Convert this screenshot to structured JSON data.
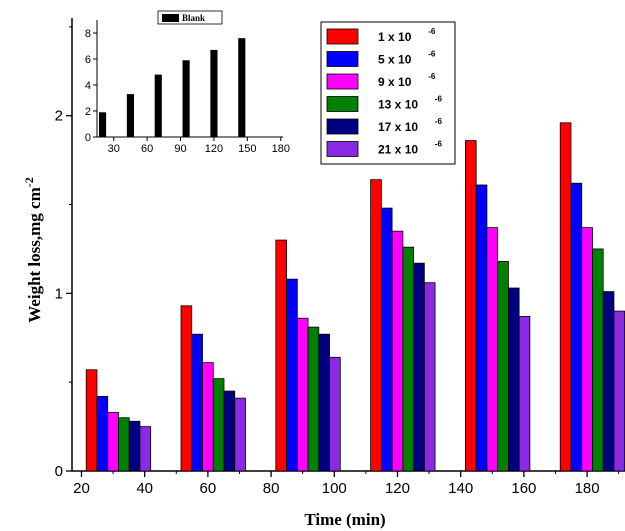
{
  "chart_data": [
    {
      "type": "bar",
      "title": "",
      "xlabel": "Time (min)",
      "ylabel": "Weight loss,mg cm",
      "ylabel_exponent": "-2",
      "xlim": [
        17,
        192
      ],
      "ylim": [
        0,
        2.55
      ],
      "xticks": [
        20,
        40,
        60,
        80,
        100,
        120,
        140,
        160,
        180
      ],
      "yticks": [
        0,
        1,
        2
      ],
      "categories": [
        30,
        60,
        90,
        120,
        150,
        180
      ],
      "series": [
        {
          "name": "1  x 10",
          "exponent": "-6",
          "color": "#ff0000",
          "values": [
            0.57,
            0.93,
            1.3,
            1.64,
            1.86,
            1.96
          ]
        },
        {
          "name": "5  x 10",
          "exponent": "-6",
          "color": "#0000ff",
          "values": [
            0.42,
            0.77,
            1.08,
            1.48,
            1.61,
            1.62
          ]
        },
        {
          "name": "9  x 10",
          "exponent": "-6",
          "color": "#ff00ff",
          "values": [
            0.33,
            0.61,
            0.86,
            1.35,
            1.37,
            1.37
          ]
        },
        {
          "name": "13  x 10",
          "exponent": "-6",
          "color": "#008000",
          "values": [
            0.3,
            0.52,
            0.81,
            1.26,
            1.18,
            1.25
          ]
        },
        {
          "name": "17  x 10",
          "exponent": "-6",
          "color": "#000080",
          "values": [
            0.28,
            0.45,
            0.77,
            1.17,
            1.03,
            1.01
          ]
        },
        {
          "name": "21  x 10",
          "exponent": "-6",
          "color": "#8a2be2",
          "values": [
            0.25,
            0.41,
            0.64,
            1.06,
            0.87,
            0.9
          ]
        }
      ],
      "legend_position": "top-right"
    },
    {
      "type": "bar",
      "title": "",
      "xlabel": "",
      "ylabel": "",
      "xlim": [
        15,
        182
      ],
      "ylim": [
        0,
        9
      ],
      "xticks": [
        30,
        60,
        90,
        120,
        150,
        180
      ],
      "yticks": [
        0,
        2,
        4,
        6,
        8
      ],
      "categories": [
        20,
        45,
        70,
        95,
        120,
        145
      ],
      "series": [
        {
          "name": "Blank",
          "color": "#000000",
          "values": [
            1.9,
            3.3,
            4.8,
            5.9,
            6.7,
            7.6
          ]
        }
      ],
      "legend_position": "top"
    }
  ]
}
